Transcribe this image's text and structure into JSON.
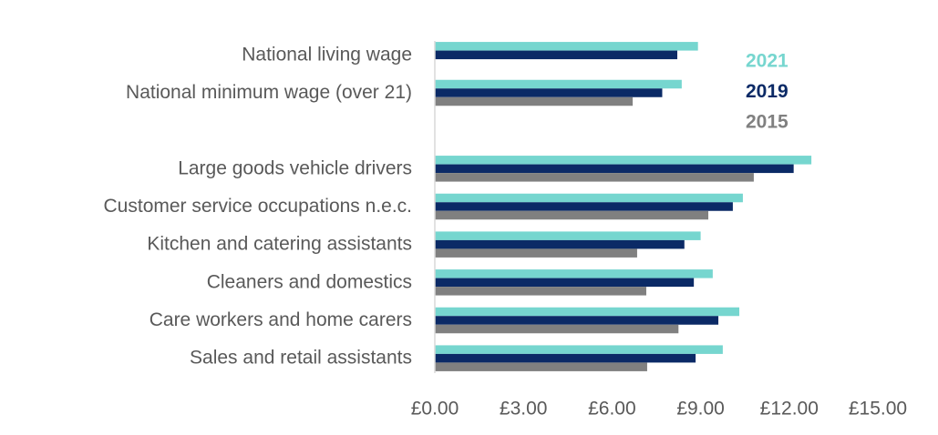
{
  "chart_data": {
    "type": "hbar",
    "categories": [
      "National living wage",
      "National minimum wage (over 21)",
      null,
      "Large goods vehicle drivers",
      "Customer service occupations n.e.c.",
      "Kitchen and catering assistants",
      "Cleaners and domestics",
      "Care workers and home carers",
      "Sales and retail assistants"
    ],
    "series": [
      {
        "name": "2021",
        "color": "#76d6cf",
        "values": [
          8.91,
          8.36,
          null,
          12.75,
          10.43,
          9.0,
          9.41,
          10.31,
          9.75
        ]
      },
      {
        "name": "2019",
        "color": "#0b2a66",
        "values": [
          8.21,
          7.7,
          null,
          12.15,
          10.09,
          8.45,
          8.77,
          9.6,
          8.83
        ]
      },
      {
        "name": "2015",
        "color": "#808080",
        "values": [
          null,
          6.7,
          null,
          10.8,
          9.26,
          6.85,
          7.16,
          8.25,
          7.19
        ]
      }
    ],
    "xlim": [
      0,
      15
    ],
    "xticks": [
      {
        "value": 0,
        "label": "£0.00"
      },
      {
        "value": 3,
        "label": "£3.00"
      },
      {
        "value": 6,
        "label": "£6.00"
      },
      {
        "value": 9,
        "label": "£9.00"
      },
      {
        "value": 12,
        "label": "£12.00"
      },
      {
        "value": 15,
        "label": "£15.00"
      }
    ],
    "legend": "top-right"
  }
}
